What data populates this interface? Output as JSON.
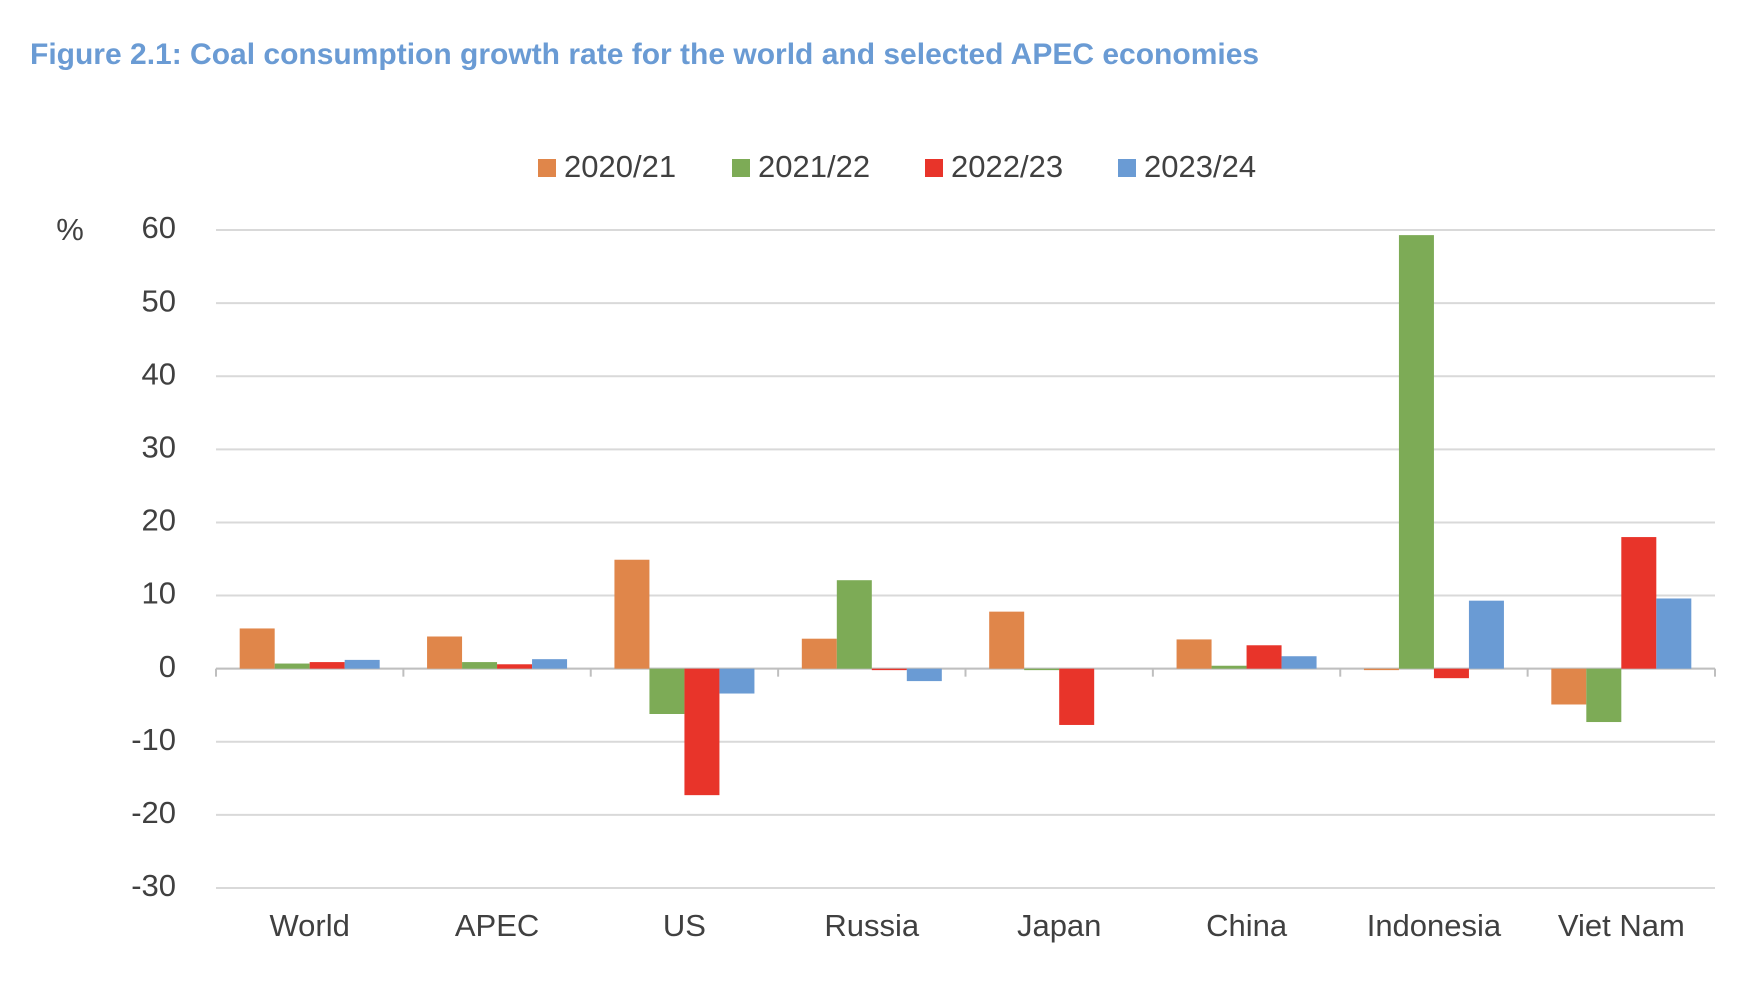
{
  "chart_data": {
    "type": "bar",
    "title": "Figure 2.1: Coal consumption growth rate for the world and selected APEC economies",
    "y_label": "%",
    "categories": [
      "World",
      "APEC",
      "US",
      "Russia",
      "Japan",
      "China",
      "Indonesia",
      "Viet Nam"
    ],
    "series": [
      {
        "name": "2020/21",
        "color": "#e0864a",
        "values": [
          5.5,
          4.4,
          14.9,
          4.1,
          7.8,
          4.0,
          -0.2,
          -4.9
        ]
      },
      {
        "name": "2021/22",
        "color": "#7dab56",
        "values": [
          0.7,
          0.9,
          -6.2,
          12.1,
          -0.2,
          0.4,
          59.3,
          -7.3
        ]
      },
      {
        "name": "2022/23",
        "color": "#e8342a",
        "values": [
          0.9,
          0.6,
          -17.3,
          -0.2,
          -7.7,
          3.2,
          -1.3,
          18.0
        ]
      },
      {
        "name": "2023/24",
        "color": "#6a9bd4",
        "values": [
          1.2,
          1.3,
          -3.4,
          -1.7,
          0,
          1.7,
          9.3,
          9.6
        ]
      }
    ],
    "ylim": [
      -30,
      60
    ],
    "yticks": [
      -30,
      -20,
      -10,
      0,
      10,
      20,
      30,
      40,
      50,
      60
    ],
    "grid": true,
    "legend": "top"
  }
}
